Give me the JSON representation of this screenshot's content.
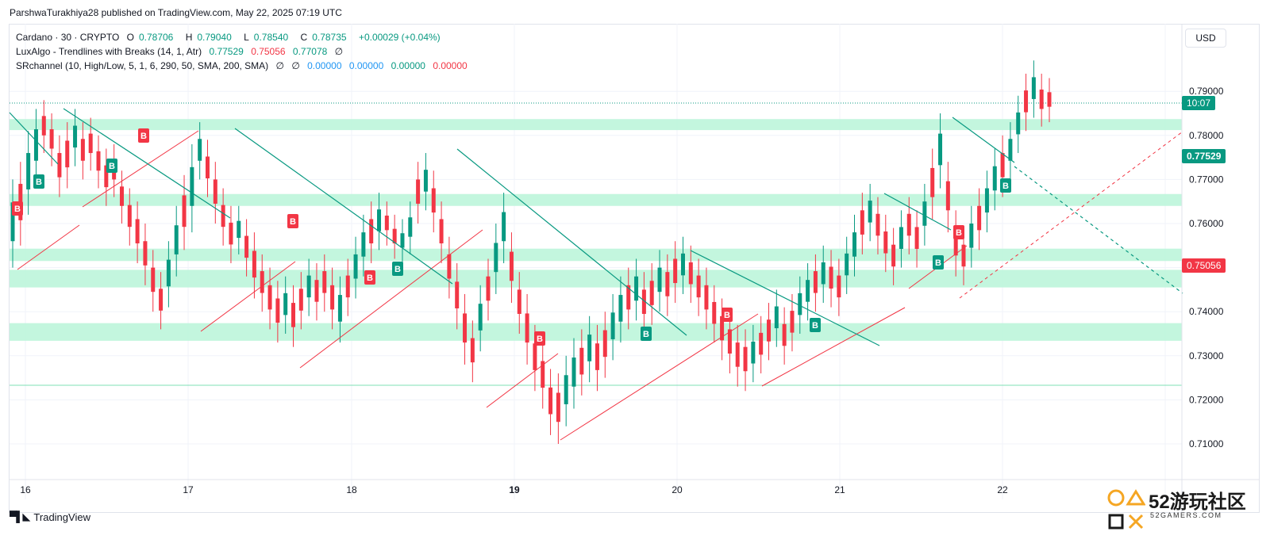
{
  "header": {
    "published": "ParshwaTurakhiya28 published on TradingView.com, May 22, 2025 07:19 UTC"
  },
  "legend": {
    "symbol": "Cardano · 30 · CRYPTO",
    "o_label": "O",
    "o": "0.78706",
    "h_label": "H",
    "h": "0.79040",
    "l_label": "L",
    "l": "0.78540",
    "c_label": "C",
    "c": "0.78735",
    "change": "+0.00029 (+0.04%)",
    "indicator1": "LuxAlgo - Trendlines with Breaks (14, 1, Atr)",
    "ind1_v1": "0.77529",
    "ind1_v2": "0.75056",
    "ind1_v3": "0.77078",
    "ind1_null": "∅",
    "indicator2": "SRchannel (10, High/Low, 5, 1, 6, 290, 50, SMA, 200, SMA)",
    "ind2_null1": "∅",
    "ind2_null2": "∅",
    "ind2_v1": "0.00000",
    "ind2_v2": "0.00000",
    "ind2_v3": "0.00000",
    "ind2_v4": "0.00000"
  },
  "currency": "USD",
  "price_tags": {
    "countdown": "10:07",
    "upper": "0.77529",
    "lower": "0.75056"
  },
  "footer": {
    "brand": "TradingView"
  },
  "watermark": {
    "text": "52游玩社区",
    "sub": "52GAMERS.COM"
  },
  "colors": {
    "up": "#089981",
    "down": "#f23645",
    "zone": "#b9f5d8",
    "trend_up": "#f23645",
    "trend_down": "#089981"
  },
  "chart_data": {
    "type": "candlestick",
    "symbol": "Cardano",
    "ylim": [
      0.7025,
      0.8005
    ],
    "y_ticks": [
      "0.79000",
      "0.78000",
      "0.77000",
      "0.76000",
      "0.75000",
      "0.74000",
      "0.73000",
      "0.72000",
      "0.71000"
    ],
    "x_ticks": [
      "16",
      "17",
      "18",
      "19",
      "20",
      "21",
      "22"
    ],
    "sr_zones": [
      [
        0.7812,
        0.7837
      ],
      [
        0.764,
        0.7667
      ],
      [
        0.7515,
        0.7543
      ],
      [
        0.7455,
        0.7495
      ],
      [
        0.7334,
        0.7374
      ]
    ],
    "sr_line": 0.7233,
    "ohlc_points": [
      [
        0.752,
        0.768
      ],
      [
        0.757,
        0.772
      ],
      [
        0.764,
        0.779
      ],
      [
        0.771,
        0.784
      ],
      [
        0.778,
        0.786
      ],
      [
        0.775,
        0.783
      ],
      [
        0.768,
        0.778
      ],
      [
        0.77,
        0.781
      ],
      [
        0.775,
        0.784
      ],
      [
        0.772,
        0.781
      ],
      [
        0.774,
        0.782
      ],
      [
        0.77,
        0.778
      ],
      [
        0.766,
        0.775
      ],
      [
        0.768,
        0.776
      ],
      [
        0.762,
        0.77
      ],
      [
        0.757,
        0.766
      ],
      [
        0.753,
        0.763
      ],
      [
        0.748,
        0.758
      ],
      [
        0.742,
        0.752
      ],
      [
        0.738,
        0.747
      ],
      [
        0.743,
        0.754
      ],
      [
        0.75,
        0.762
      ],
      [
        0.756,
        0.769
      ],
      [
        0.76,
        0.776
      ],
      [
        0.772,
        0.781
      ],
      [
        0.768,
        0.777
      ],
      [
        0.762,
        0.772
      ],
      [
        0.757,
        0.766
      ],
      [
        0.753,
        0.762
      ],
      [
        0.755,
        0.762
      ],
      [
        0.75,
        0.759
      ],
      [
        0.745,
        0.756
      ],
      [
        0.742,
        0.751
      ],
      [
        0.738,
        0.748
      ],
      [
        0.735,
        0.745
      ],
      [
        0.737,
        0.746
      ],
      [
        0.734,
        0.744
      ],
      [
        0.738,
        0.747
      ],
      [
        0.741,
        0.75
      ],
      [
        0.74,
        0.749
      ],
      [
        0.742,
        0.751
      ],
      [
        0.738,
        0.748
      ],
      [
        0.735,
        0.746
      ],
      [
        0.741,
        0.75
      ],
      [
        0.745,
        0.755
      ],
      [
        0.75,
        0.76
      ],
      [
        0.753,
        0.763
      ],
      [
        0.756,
        0.765
      ],
      [
        0.757,
        0.763
      ],
      [
        0.754,
        0.76
      ],
      [
        0.753,
        0.759
      ],
      [
        0.755,
        0.763
      ],
      [
        0.762,
        0.772
      ],
      [
        0.765,
        0.774
      ],
      [
        0.76,
        0.77
      ],
      [
        0.753,
        0.763
      ],
      [
        0.745,
        0.755
      ],
      [
        0.738,
        0.749
      ],
      [
        0.73,
        0.742
      ],
      [
        0.726,
        0.736
      ],
      [
        0.733,
        0.744
      ],
      [
        0.74,
        0.75
      ],
      [
        0.746,
        0.758
      ],
      [
        0.753,
        0.765
      ],
      [
        0.744,
        0.756
      ],
      [
        0.737,
        0.747
      ],
      [
        0.73,
        0.742
      ],
      [
        0.724,
        0.735
      ],
      [
        0.72,
        0.731
      ],
      [
        0.714,
        0.725
      ],
      [
        0.712,
        0.724
      ],
      [
        0.716,
        0.728
      ],
      [
        0.72,
        0.732
      ],
      [
        0.723,
        0.734
      ],
      [
        0.726,
        0.737
      ],
      [
        0.724,
        0.735
      ],
      [
        0.727,
        0.738
      ],
      [
        0.731,
        0.742
      ],
      [
        0.735,
        0.746
      ],
      [
        0.738,
        0.748
      ],
      [
        0.74,
        0.75
      ],
      [
        0.737,
        0.747
      ],
      [
        0.739,
        0.749
      ],
      [
        0.742,
        0.752
      ],
      [
        0.741,
        0.751
      ],
      [
        0.744,
        0.754
      ],
      [
        0.746,
        0.755
      ],
      [
        0.744,
        0.753
      ],
      [
        0.741,
        0.75
      ],
      [
        0.738,
        0.748
      ],
      [
        0.735,
        0.744
      ],
      [
        0.731,
        0.741
      ],
      [
        0.728,
        0.738
      ],
      [
        0.725,
        0.735
      ],
      [
        0.724,
        0.734
      ],
      [
        0.726,
        0.735
      ],
      [
        0.728,
        0.737
      ],
      [
        0.731,
        0.74
      ],
      [
        0.734,
        0.743
      ],
      [
        0.73,
        0.739
      ],
      [
        0.733,
        0.742
      ],
      [
        0.737,
        0.746
      ],
      [
        0.74,
        0.749
      ],
      [
        0.742,
        0.751
      ],
      [
        0.744,
        0.753
      ],
      [
        0.743,
        0.752
      ],
      [
        0.741,
        0.75
      ],
      [
        0.746,
        0.755
      ],
      [
        0.75,
        0.76
      ],
      [
        0.755,
        0.765
      ],
      [
        0.758,
        0.767
      ],
      [
        0.755,
        0.764
      ],
      [
        0.751,
        0.76
      ],
      [
        0.748,
        0.757
      ],
      [
        0.752,
        0.761
      ],
      [
        0.755,
        0.764
      ],
      [
        0.752,
        0.761
      ],
      [
        0.757,
        0.767
      ],
      [
        0.763,
        0.775
      ],
      [
        0.77,
        0.783
      ],
      [
        0.76,
        0.772
      ],
      [
        0.75,
        0.761
      ],
      [
        0.748,
        0.757
      ],
      [
        0.752,
        0.762
      ],
      [
        0.756,
        0.766
      ],
      [
        0.76,
        0.77
      ],
      [
        0.765,
        0.775
      ],
      [
        0.768,
        0.778
      ],
      [
        0.772,
        0.781
      ],
      [
        0.778,
        0.787
      ],
      [
        0.783,
        0.792
      ],
      [
        0.786,
        0.795
      ],
      [
        0.784,
        0.792
      ],
      [
        0.785,
        0.791
      ]
    ]
  }
}
